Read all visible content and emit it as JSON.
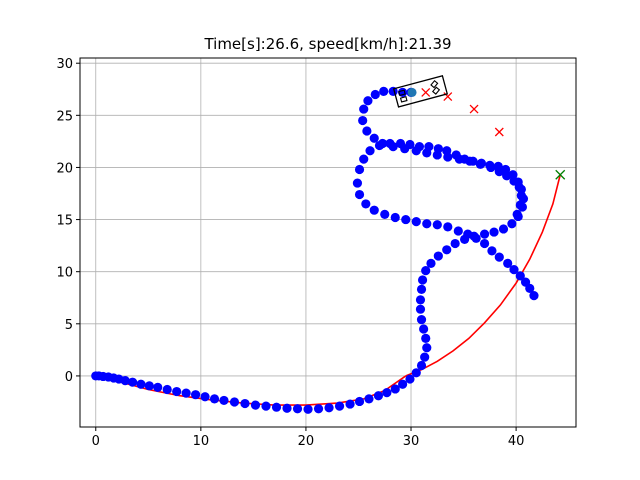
{
  "chart_data": {
    "type": "scatter",
    "title": "Time[s]:26.6, speed[km/h]:21.39",
    "xlabel": "",
    "ylabel": "",
    "xlim": [
      -1.5,
      45.7
    ],
    "ylim": [
      -4.9,
      30.5
    ],
    "xticks": [
      0,
      10,
      20,
      30,
      40
    ],
    "yticks": [
      0,
      5,
      10,
      15,
      20,
      25,
      30
    ],
    "grid": true,
    "colors": {
      "trajectory": "#0000ff",
      "reference_path": "#ff0000",
      "predicted_points": "#ff0000",
      "target": "#007f00",
      "vehicle": "#000000",
      "current_position": "#1f77b4"
    },
    "series": [
      {
        "type": "line",
        "points": [
          [
            29.5,
            0.0
          ],
          [
            31,
            0.6
          ],
          [
            32.5,
            1.4
          ],
          [
            34,
            2.4
          ],
          [
            35.5,
            3.6
          ],
          [
            37,
            5.1
          ],
          [
            38.5,
            6.8
          ],
          [
            40,
            8.9
          ],
          [
            41.3,
            11.2
          ],
          [
            42.5,
            13.8
          ],
          [
            43.5,
            16.5
          ],
          [
            44.2,
            19.3
          ]
        ]
      },
      {
        "type": "line",
        "points": [
          [
            29.5,
            0.0
          ],
          [
            27.5,
            -1.4
          ],
          [
            25.5,
            -2.2
          ],
          [
            23,
            -2.6
          ],
          [
            20,
            -2.8
          ],
          [
            17,
            -2.8
          ],
          [
            14,
            -2.6
          ],
          [
            11,
            -2.3
          ],
          [
            8,
            -1.9
          ],
          [
            5,
            -1.3
          ],
          [
            2,
            -0.5
          ],
          [
            0,
            0.0
          ]
        ]
      },
      {
        "type": "scatter",
        "points": [
          [
            0,
            0
          ],
          [
            0.3,
            0
          ],
          [
            0.7,
            -0.05
          ],
          [
            1.2,
            -0.1
          ],
          [
            1.7,
            -0.2
          ],
          [
            2.2,
            -0.3
          ],
          [
            2.8,
            -0.45
          ],
          [
            3.5,
            -0.6
          ],
          [
            4.3,
            -0.8
          ],
          [
            5.1,
            -0.95
          ],
          [
            5.9,
            -1.1
          ],
          [
            6.8,
            -1.3
          ],
          [
            7.7,
            -1.5
          ],
          [
            8.6,
            -1.65
          ],
          [
            9.5,
            -1.8
          ],
          [
            10.4,
            -2.0
          ],
          [
            11.3,
            -2.2
          ],
          [
            12.2,
            -2.35
          ],
          [
            13.2,
            -2.5
          ],
          [
            14.2,
            -2.65
          ],
          [
            15.2,
            -2.8
          ],
          [
            16.2,
            -2.9
          ],
          [
            17.2,
            -3.0
          ],
          [
            18.2,
            -3.1
          ],
          [
            19.2,
            -3.15
          ],
          [
            20.2,
            -3.2
          ],
          [
            21.2,
            -3.15
          ],
          [
            22.2,
            -3.05
          ],
          [
            23.2,
            -2.9
          ],
          [
            24.2,
            -2.7
          ],
          [
            25.1,
            -2.45
          ],
          [
            26,
            -2.2
          ],
          [
            26.9,
            -1.9
          ],
          [
            27.7,
            -1.6
          ],
          [
            28.5,
            -1.25
          ],
          [
            29.2,
            -0.8
          ],
          [
            29.9,
            -0.3
          ],
          [
            30.5,
            0.3
          ],
          [
            31.0,
            1.0
          ],
          [
            31.3,
            1.8
          ],
          [
            31.5,
            2.7
          ],
          [
            31.4,
            3.6
          ],
          [
            31.2,
            4.5
          ],
          [
            31.0,
            5.4
          ],
          [
            30.9,
            6.4
          ],
          [
            30.9,
            7.3
          ],
          [
            31.0,
            8.3
          ],
          [
            31.1,
            9.2
          ],
          [
            31.4,
            10.1
          ],
          [
            31.9,
            10.8
          ],
          [
            32.6,
            11.5
          ],
          [
            33.4,
            12.1
          ],
          [
            34.2,
            12.7
          ],
          [
            35.1,
            13.1
          ],
          [
            36.0,
            13.4
          ],
          [
            37.0,
            13.6
          ],
          [
            37.9,
            13.8
          ],
          [
            38.8,
            14.1
          ],
          [
            39.6,
            14.6
          ],
          [
            40.2,
            15.3
          ],
          [
            40.6,
            16.2
          ],
          [
            40.7,
            17.0
          ],
          [
            40.5,
            17.9
          ],
          [
            40.2,
            18.6
          ],
          [
            39.7,
            19.3
          ],
          [
            39.0,
            19.8
          ],
          [
            38.3,
            20.1
          ],
          [
            37.5,
            20.2
          ],
          [
            36.7,
            20.4
          ],
          [
            35.9,
            20.6
          ],
          [
            35.1,
            20.8
          ],
          [
            34.3,
            21.2
          ],
          [
            33.4,
            21.6
          ],
          [
            32.6,
            21.8
          ],
          [
            31.7,
            22.0
          ],
          [
            30.8,
            22.0
          ],
          [
            29.9,
            22.2
          ],
          [
            29.0,
            22.3
          ],
          [
            28.0,
            22.3
          ],
          [
            27.0,
            22.1
          ],
          [
            26.1,
            21.6
          ],
          [
            25.5,
            20.8
          ],
          [
            25.1,
            19.8
          ],
          [
            24.9,
            18.5
          ],
          [
            25.1,
            17.4
          ],
          [
            25.7,
            16.5
          ],
          [
            26.5,
            15.9
          ],
          [
            27.5,
            15.5
          ],
          [
            28.5,
            15.2
          ],
          [
            29.5,
            15.0
          ],
          [
            30.5,
            14.8
          ],
          [
            31.5,
            14.6
          ],
          [
            32.5,
            14.5
          ],
          [
            33.5,
            14.3
          ],
          [
            34.5,
            13.9
          ],
          [
            35.4,
            13.6
          ],
          [
            36.2,
            13.2
          ],
          [
            37.0,
            12.7
          ],
          [
            37.7,
            12.0
          ],
          [
            38.4,
            11.4
          ],
          [
            39.2,
            10.8
          ],
          [
            39.8,
            10.2
          ],
          [
            40.4,
            9.6
          ],
          [
            40.9,
            9.0
          ],
          [
            41.3,
            8.4
          ],
          [
            41.7,
            7.7
          ],
          [
            40.1,
            15.5
          ],
          [
            40.4,
            16.4
          ],
          [
            40.5,
            17.3
          ],
          [
            40.3,
            18.1
          ],
          [
            39.8,
            18.7
          ],
          [
            39.1,
            19.2
          ],
          [
            38.4,
            19.6
          ],
          [
            37.6,
            20.0
          ],
          [
            36.6,
            20.3
          ],
          [
            35.6,
            20.6
          ],
          [
            34.6,
            20.8
          ],
          [
            33.5,
            21.0
          ],
          [
            32.5,
            21.2
          ],
          [
            31.5,
            21.4
          ],
          [
            30.5,
            21.6
          ],
          [
            29.4,
            21.8
          ],
          [
            28.3,
            22.0
          ],
          [
            27.3,
            22.3
          ],
          [
            26.5,
            22.8
          ],
          [
            25.8,
            23.5
          ],
          [
            25.4,
            24.5
          ],
          [
            25.5,
            25.6
          ],
          [
            25.9,
            26.4
          ],
          [
            26.6,
            27.0
          ],
          [
            27.4,
            27.3
          ],
          [
            28.3,
            27.3
          ],
          [
            29.2,
            27.2
          ],
          [
            30.0,
            27.2
          ]
        ]
      },
      {
        "type": "scatter",
        "points": [
          [
            31.4,
            27.2
          ],
          [
            33.5,
            26.8
          ],
          [
            36.0,
            25.6
          ],
          [
            38.4,
            23.4
          ]
        ]
      },
      {
        "type": "scatter",
        "points": [
          [
            44.2,
            19.3
          ]
        ]
      },
      {
        "type": "scatter",
        "points": [
          [
            30.1,
            27.2
          ]
        ]
      }
    ],
    "vehicle": {
      "x": 30.9,
      "y": 27.3,
      "yaw_deg": 15,
      "length": 4.8,
      "width": 1.8
    }
  }
}
